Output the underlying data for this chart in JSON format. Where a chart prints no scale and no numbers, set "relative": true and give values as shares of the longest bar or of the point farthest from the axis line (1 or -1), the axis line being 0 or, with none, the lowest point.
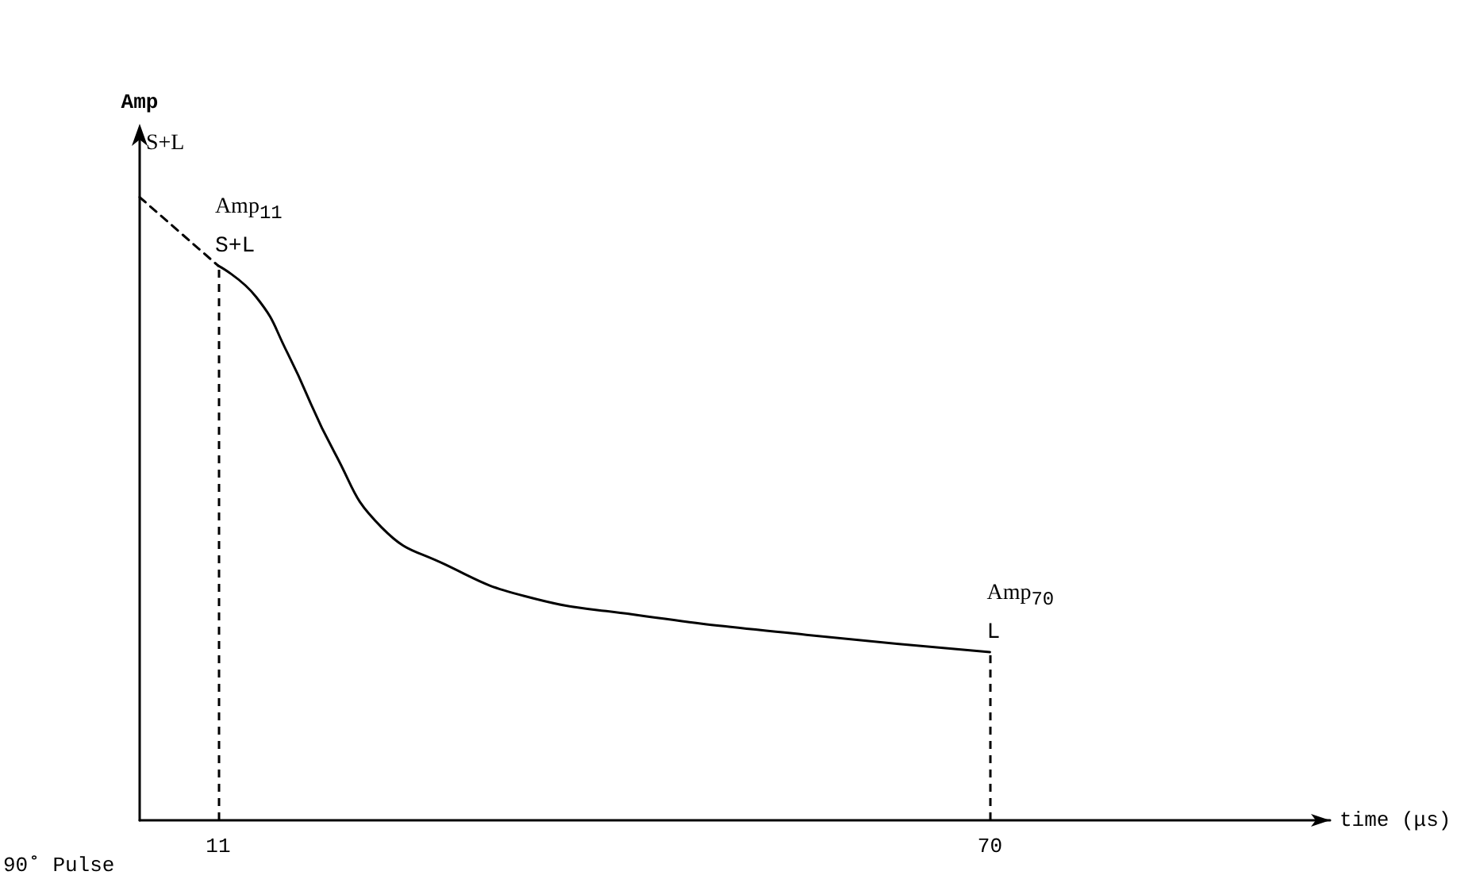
{
  "chart_data": {
    "type": "line",
    "relative": true,
    "xlabel": "time (μs)",
    "ylabel": "Amp",
    "xlim": [
      5,
      96
    ],
    "xticks": [
      11,
      70
    ],
    "grid": false,
    "marker": "none",
    "series": [
      {
        "color": "#000000",
        "line_style": "dashed",
        "x": [
          5,
          11
        ],
        "values": [
          1,
          0.89
        ]
      },
      {
        "color": "#000000",
        "line_style": "solid",
        "x": [
          11,
          13.9,
          16.3,
          19.9,
          23.5,
          28.4,
          34.4,
          42.8,
          54.9,
          70
        ],
        "values": [
          0.89,
          0.84,
          0.75,
          0.59,
          0.47,
          0.41,
          0.36,
          0.33,
          0.3,
          0.27
        ]
      }
    ],
    "ref_lines": [
      {
        "axis": "x",
        "value": 11,
        "line_style": "dashed",
        "color": "#000000"
      },
      {
        "axis": "x",
        "value": 70,
        "line_style": "dashed",
        "color": "#000000"
      }
    ],
    "annotations": [
      {
        "text": "S+L",
        "x": 5,
        "y": 1
      },
      {
        "text": "Amp$_{11}$",
        "x": 11,
        "y": 0.89
      },
      {
        "text": "S+L",
        "x": 11,
        "y": 0.89
      },
      {
        "text": "Amp$_{70}$",
        "x": 70,
        "y": 0.27
      },
      {
        "text": "L",
        "x": 70,
        "y": 0.27
      },
      "90˚ Pulse"
    ]
  }
}
